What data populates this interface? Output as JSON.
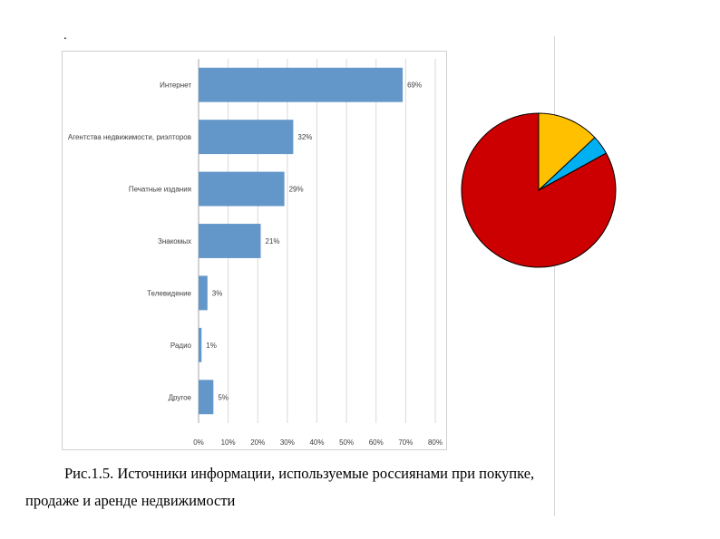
{
  "page": {
    "dot": ".",
    "caption_line1": "Рис.1.5. Источники информации, используемые россиянами при покупке,",
    "caption_line2": "продаже и аренде недвижимости"
  },
  "chart_data": [
    {
      "type": "bar",
      "orientation": "horizontal",
      "categories": [
        "Интернет",
        "Агентства недвижимости, риэлторов",
        "Печатные издания",
        "Знакомых",
        "Телевидение",
        "Радио",
        "Другое"
      ],
      "values": [
        69,
        32,
        29,
        21,
        3,
        1,
        5
      ],
      "value_labels": [
        "69%",
        "32%",
        "29%",
        "21%",
        "3%",
        "1%",
        "5%"
      ],
      "xlim": [
        0,
        80
      ],
      "xticks": [
        "0%",
        "10%",
        "20%",
        "30%",
        "40%",
        "50%",
        "60%",
        "70%",
        "80%"
      ],
      "grid": true,
      "bar_color": "#6497c9"
    },
    {
      "type": "pie",
      "values": [
        13,
        4,
        83
      ],
      "colors": [
        "#ffc000",
        "#00b0f0",
        "#cc0000"
      ],
      "start_angle": "top",
      "direction": "clockwise"
    }
  ]
}
